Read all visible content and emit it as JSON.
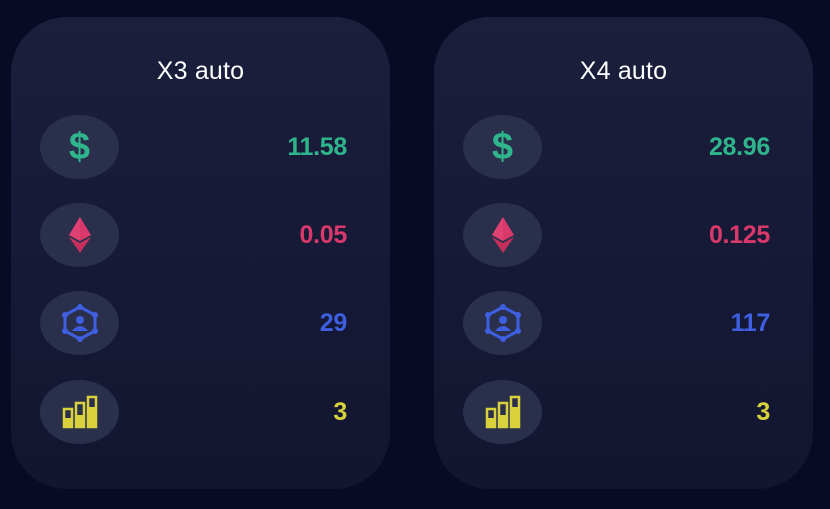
{
  "colors": {
    "background": "#070c24",
    "card": "#171b38",
    "icon_circle": "#2a2f4c",
    "usd": "#2fb58c",
    "eth": "#d8386a",
    "partners": "#3d5fe0",
    "level": "#d9d23c",
    "title": "#ffffff"
  },
  "icons": {
    "usd": "dollar-icon",
    "eth": "ethereum-icon",
    "partners": "partners-network-icon",
    "level": "level-bars-icon"
  },
  "cards": [
    {
      "title": "X3 auto",
      "usd": "11.58",
      "eth": "0.05",
      "partners": "29",
      "level": "3"
    },
    {
      "title": "X4 auto",
      "usd": "28.96",
      "eth": "0.125",
      "partners": "117",
      "level": "3"
    }
  ]
}
